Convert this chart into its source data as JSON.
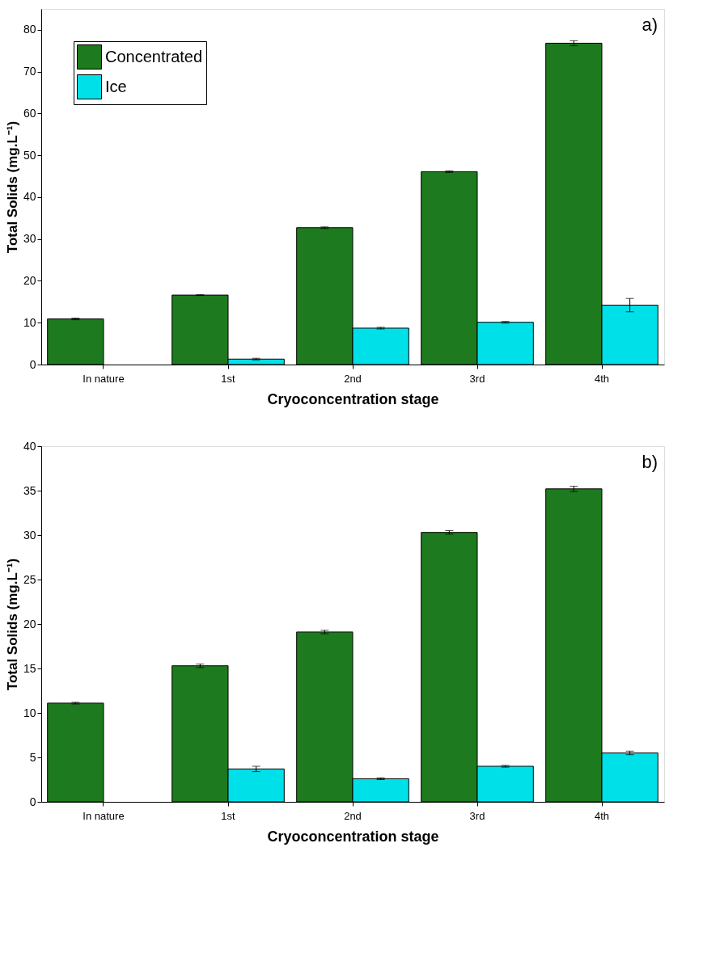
{
  "chart_data": [
    {
      "type": "bar",
      "xlabel": "Cryoconcentration stage",
      "ylabel": "Total Solids (mg.L⁻¹)",
      "categories": [
        "In nature",
        "1st",
        "2nd",
        "3rd",
        "4th"
      ],
      "series": [
        {
          "name": "Concentrated",
          "color": "#1e7a1e",
          "values": [
            10.9,
            16.6,
            32.7,
            46.1,
            76.8
          ],
          "errors": [
            0.2,
            0.1,
            0.2,
            0.2,
            0.6
          ]
        },
        {
          "name": "Ice",
          "color": "#00e0e8",
          "values": [
            null,
            1.3,
            8.7,
            10.1,
            14.2
          ],
          "errors": [
            null,
            0.2,
            0.2,
            0.2,
            1.6
          ]
        }
      ],
      "ylim": [
        0,
        85
      ],
      "yticks": [
        0,
        10,
        20,
        30,
        40,
        50,
        60,
        70,
        80
      ],
      "grid": false,
      "legend": "top left",
      "annotations": [
        "a)"
      ]
    },
    {
      "type": "bar",
      "xlabel": "Cryoconcentration stage",
      "ylabel": "Total Solids (mg.L⁻¹)",
      "categories": [
        "In nature",
        "1st",
        "2nd",
        "3rd",
        "4th"
      ],
      "series": [
        {
          "name": "Concentrated",
          "color": "#1e7a1e",
          "values": [
            11.1,
            15.3,
            19.1,
            30.3,
            35.2
          ],
          "errors": [
            0.1,
            0.2,
            0.2,
            0.2,
            0.3
          ]
        },
        {
          "name": "Ice",
          "color": "#00e0e8",
          "values": [
            null,
            3.7,
            2.6,
            4.0,
            5.5
          ],
          "errors": [
            null,
            0.3,
            0.1,
            0.1,
            0.2
          ]
        }
      ],
      "ylim": [
        0,
        40
      ],
      "yticks": [
        0,
        5,
        10,
        15,
        20,
        25,
        30,
        35,
        40
      ],
      "grid": false,
      "legend": "top left",
      "annotations": [
        "b)"
      ]
    }
  ]
}
